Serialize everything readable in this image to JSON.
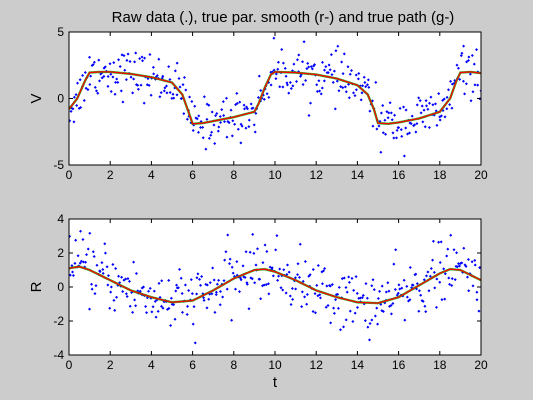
{
  "figure": {
    "title": "Raw data (.), true par. smooth (r-) and true path (g-)"
  },
  "chart_data": [
    {
      "type": "scatter",
      "ylabel": "V",
      "xlabel": "",
      "xlim": [
        0,
        20
      ],
      "ylim": [
        -5,
        5
      ],
      "xticks": [
        "0",
        "2",
        "4",
        "6",
        "8",
        "10",
        "12",
        "14",
        "16",
        "18",
        "20"
      ],
      "yticks": [
        "-5",
        "0",
        "5"
      ],
      "grid": false,
      "series": [
        {
          "kind": "raw-points",
          "color": "#0000ff",
          "x_range": [
            0,
            20
          ],
          "noise": 0.9
        },
        {
          "kind": "smooth-line",
          "color": "#ff0000",
          "x": [
            0,
            0.4,
            0.8,
            1.0,
            1.5,
            2,
            3,
            4,
            5,
            5.5,
            5.8,
            6,
            6.5,
            7,
            8,
            9,
            9.2,
            9.5,
            9.8,
            10,
            11,
            12,
            13,
            14,
            14.5,
            14.8,
            15,
            15.5,
            16,
            17,
            18,
            18.5,
            18.8,
            19,
            19.5,
            20
          ],
          "y": [
            -0.8,
            0.0,
            1.4,
            1.95,
            2.0,
            2.0,
            1.85,
            1.6,
            1.2,
            0.3,
            -1.0,
            -1.9,
            -1.85,
            -1.7,
            -1.4,
            -1.0,
            -0.4,
            0.8,
            1.8,
            2.0,
            1.95,
            1.8,
            1.5,
            1.0,
            0.3,
            -0.8,
            -1.85,
            -1.9,
            -1.8,
            -1.5,
            -1.0,
            0.0,
            1.3,
            1.95,
            2.0,
            1.9
          ]
        },
        {
          "kind": "path-line",
          "color": "#00aa00",
          "x": [
            0,
            0.4,
            0.8,
            1.0,
            1.5,
            2,
            3,
            4,
            5,
            5.5,
            5.8,
            6,
            6.5,
            7,
            8,
            9,
            9.2,
            9.5,
            9.8,
            10,
            11,
            12,
            13,
            14,
            14.5,
            14.8,
            15,
            15.5,
            16,
            17,
            18,
            18.5,
            18.8,
            19,
            19.5,
            20
          ],
          "y": [
            -0.8,
            0.0,
            1.4,
            1.95,
            2.0,
            2.0,
            1.85,
            1.6,
            1.2,
            0.3,
            -1.0,
            -1.9,
            -1.85,
            -1.7,
            -1.4,
            -1.0,
            -0.4,
            0.8,
            1.8,
            2.0,
            1.95,
            1.8,
            1.5,
            1.0,
            0.3,
            -0.8,
            -1.85,
            -1.9,
            -1.8,
            -1.5,
            -1.0,
            0.0,
            1.3,
            1.95,
            2.0,
            1.9
          ]
        }
      ]
    },
    {
      "type": "scatter",
      "ylabel": "R",
      "xlabel": "t",
      "xlim": [
        0,
        20
      ],
      "ylim": [
        -4,
        4
      ],
      "xticks": [
        "0",
        "2",
        "4",
        "6",
        "8",
        "10",
        "12",
        "14",
        "16",
        "18",
        "20"
      ],
      "yticks": [
        "-4",
        "-2",
        "0",
        "2",
        "4"
      ],
      "grid": false,
      "series": [
        {
          "kind": "raw-points",
          "color": "#0000ff",
          "x_range": [
            0,
            20
          ],
          "noise": 0.9
        },
        {
          "kind": "smooth-line",
          "color": "#ff0000",
          "x": [
            0,
            0.5,
            1,
            2,
            3,
            4,
            5,
            6,
            7,
            8,
            9,
            9.5,
            10,
            11,
            12,
            13,
            14,
            15,
            16,
            17,
            18,
            18.5,
            19,
            20
          ],
          "y": [
            1.1,
            1.2,
            1.0,
            0.4,
            -0.2,
            -0.6,
            -0.9,
            -0.8,
            -0.2,
            0.5,
            1.0,
            1.05,
            0.9,
            0.4,
            -0.2,
            -0.6,
            -0.9,
            -0.95,
            -0.6,
            0.1,
            0.8,
            1.05,
            1.0,
            0.4
          ]
        },
        {
          "kind": "path-line",
          "color": "#00aa00",
          "x": [
            0,
            0.5,
            1,
            2,
            3,
            4,
            5,
            6,
            7,
            8,
            9,
            9.5,
            10,
            11,
            12,
            13,
            14,
            15,
            16,
            17,
            18,
            18.5,
            19,
            20
          ],
          "y": [
            1.1,
            1.2,
            1.0,
            0.4,
            -0.2,
            -0.6,
            -0.9,
            -0.8,
            -0.2,
            0.5,
            1.0,
            1.05,
            0.9,
            0.4,
            -0.2,
            -0.6,
            -0.9,
            -0.95,
            -0.6,
            0.1,
            0.8,
            1.05,
            1.0,
            0.4
          ]
        }
      ]
    }
  ]
}
